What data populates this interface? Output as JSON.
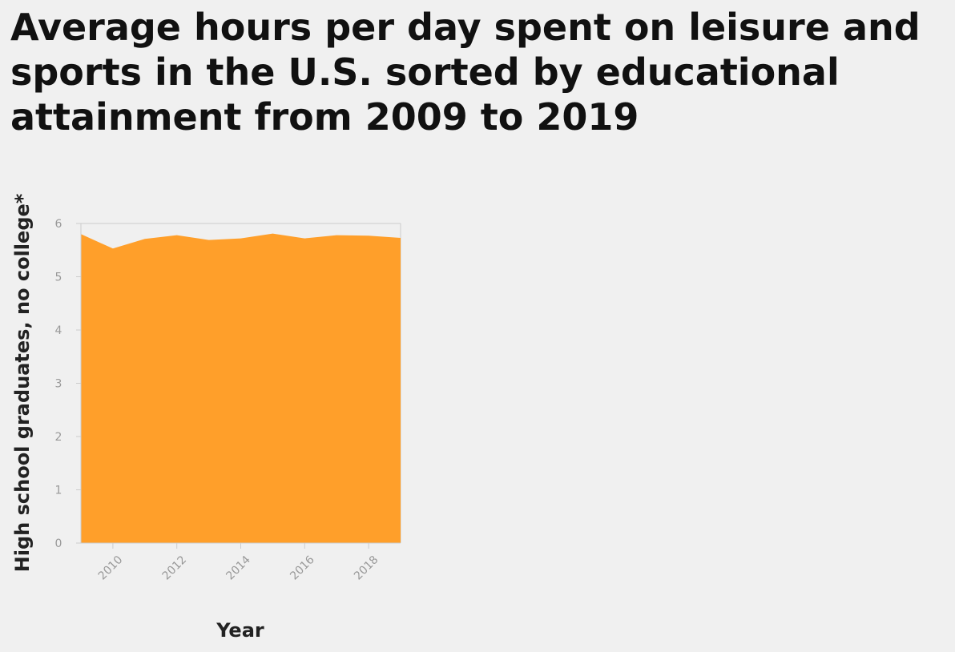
{
  "chart_data": {
    "type": "area",
    "title": "Average hours per day spent on leisure and sports in the U.S. sorted by educational attainment from 2009 to 2019",
    "xlabel": "Year",
    "ylabel": "High school graduates, no college*",
    "x": [
      2009,
      2010,
      2011,
      2012,
      2013,
      2014,
      2015,
      2016,
      2017,
      2018,
      2019
    ],
    "series": [
      {
        "values": [
          5.8,
          5.53,
          5.71,
          5.78,
          5.69,
          5.72,
          5.81,
          5.72,
          5.78,
          5.77,
          5.73
        ]
      }
    ],
    "xlim": [
      2009,
      2019
    ],
    "ylim": [
      0,
      6
    ],
    "x_ticks": [
      "2010",
      "2012",
      "2014",
      "2016",
      "2018"
    ],
    "y_ticks": [
      "0",
      "1",
      "2",
      "3",
      "4",
      "5",
      "6"
    ],
    "fill_color": "#ff9f2a",
    "axis_color": "#cccccc",
    "tick_color": "#999999",
    "grid": false,
    "legend": "none"
  }
}
